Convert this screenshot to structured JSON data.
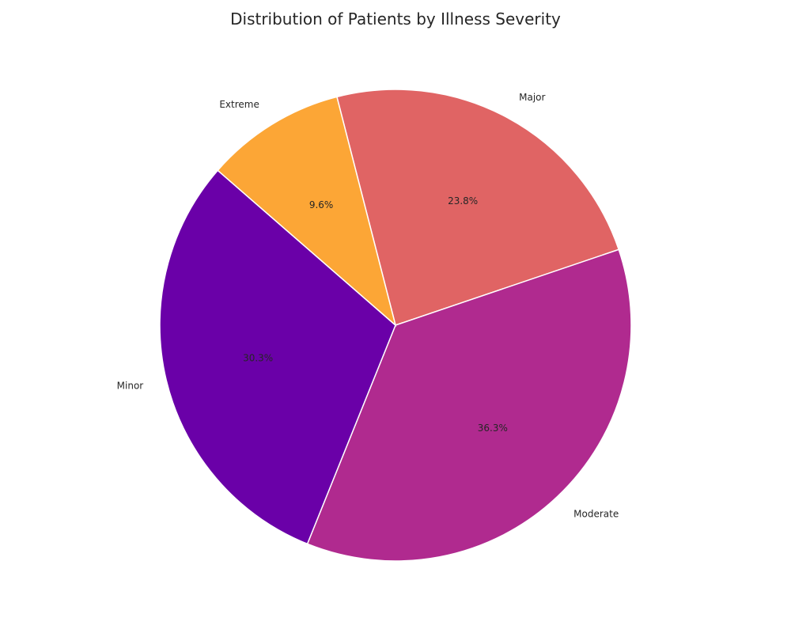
{
  "chart_data": {
    "type": "pie",
    "title": "Distribution of Patients by Illness Severity",
    "slices": [
      {
        "label": "Major",
        "value": 23.8,
        "pct_label": "23.8%",
        "color": "#e06464"
      },
      {
        "label": "Moderate",
        "value": 36.3,
        "pct_label": "36.3%",
        "color": "#b02a8f"
      },
      {
        "label": "Minor",
        "value": 30.3,
        "pct_label": "30.3%",
        "color": "#6a00a8"
      },
      {
        "label": "Extreme",
        "value": 9.6,
        "pct_label": "9.6%",
        "color": "#fca636"
      }
    ],
    "start_angle_deg": 104.4,
    "direction": "clockwise"
  }
}
